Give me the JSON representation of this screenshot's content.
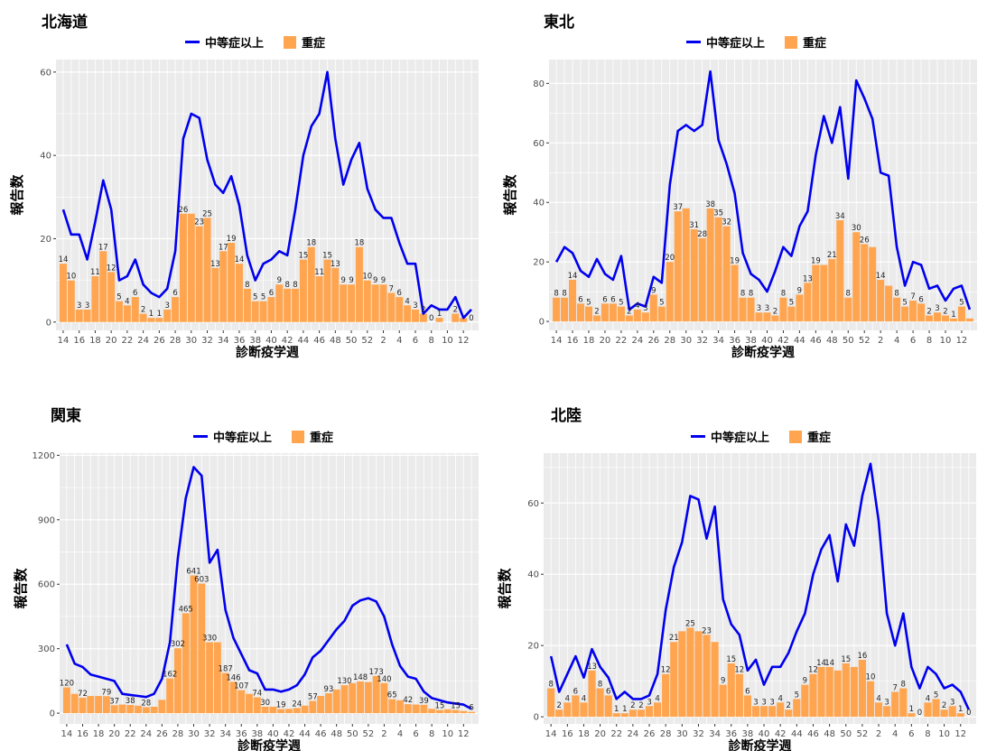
{
  "legend": {
    "line_label": "中等症以上",
    "bar_label": "重症"
  },
  "colors": {
    "line": "#0000ee",
    "bar": "#ffa54f",
    "panel_bg": "#ebebeb",
    "grid": "#ffffff"
  },
  "week_ticks": [
    "14",
    "16",
    "18",
    "20",
    "22",
    "24",
    "26",
    "28",
    "30",
    "32",
    "34",
    "36",
    "38",
    "40",
    "42",
    "44",
    "46",
    "48",
    "50",
    "52",
    "2",
    "4",
    "6",
    "8",
    "10",
    "12"
  ],
  "chart_data": [
    {
      "type": "bar+line",
      "title": "北海道",
      "xlabel": "診断疫学週",
      "ylabel": "報告数",
      "yticks": [
        0,
        20,
        40,
        60
      ],
      "ylim": [
        -2,
        63
      ],
      "series": [
        {
          "name": "中等症以上",
          "values": [
            27,
            21,
            21,
            15,
            24,
            34,
            27,
            10,
            11,
            15,
            9,
            7,
            6,
            8,
            17,
            44,
            50,
            49,
            39,
            33,
            31,
            35,
            28,
            16,
            10,
            14,
            15,
            17,
            16,
            27,
            40,
            47,
            50,
            60,
            44,
            33,
            39,
            43,
            32,
            27,
            25,
            25,
            19,
            14,
            14,
            2,
            4,
            3,
            3,
            6,
            1,
            3
          ]
        },
        {
          "name": "重症",
          "values": [
            14,
            10,
            3,
            3,
            11,
            17,
            12,
            5,
            4,
            6,
            2,
            1,
            1,
            3,
            6,
            26,
            26,
            23,
            25,
            13,
            17,
            19,
            14,
            8,
            5,
            5,
            6,
            9,
            8,
            8,
            15,
            18,
            11,
            15,
            13,
            9,
            9,
            18,
            10,
            9,
            9,
            7,
            6,
            4,
            3,
            2,
            0,
            1,
            0,
            2,
            1,
            0
          ]
        }
      ],
      "bar_labels": [
        "14",
        "10",
        "3",
        "3",
        "11",
        "17",
        "12",
        "5",
        "4",
        "6",
        "2",
        "1",
        "1",
        "3",
        "6",
        "26",
        "",
        "23",
        "25",
        "13",
        "17",
        "19",
        "14",
        "8",
        "5",
        "5",
        "6",
        "9",
        "8",
        "8",
        "15",
        "18",
        "11",
        "15",
        "13",
        "9",
        "9",
        "18",
        "10",
        "9",
        "9",
        "7",
        "6",
        "4",
        "3",
        "2",
        "0",
        "1",
        "",
        "2",
        "",
        "0"
      ]
    },
    {
      "type": "bar+line",
      "title": "東北",
      "xlabel": "診断疫学週",
      "ylabel": "報告数",
      "yticks": [
        0,
        20,
        40,
        60,
        80
      ],
      "ylim": [
        -3,
        88
      ],
      "series": [
        {
          "name": "中等症以上",
          "values": [
            20,
            25,
            23,
            17,
            15,
            21,
            16,
            14,
            22,
            4,
            6,
            5,
            15,
            13,
            46,
            64,
            66,
            64,
            66,
            84,
            61,
            53,
            43,
            23,
            16,
            14,
            10,
            17,
            25,
            22,
            32,
            37,
            56,
            69,
            60,
            72,
            48,
            81,
            75,
            68,
            50,
            49,
            25,
            12,
            20,
            19,
            11,
            12,
            7,
            11,
            12,
            4
          ]
        },
        {
          "name": "重症",
          "values": [
            8,
            8,
            14,
            6,
            5,
            2,
            6,
            6,
            5,
            2,
            4,
            3,
            9,
            5,
            20,
            37,
            38,
            31,
            28,
            38,
            35,
            32,
            19,
            8,
            8,
            3,
            3,
            2,
            8,
            5,
            9,
            13,
            19,
            19,
            21,
            34,
            8,
            30,
            26,
            25,
            14,
            12,
            8,
            5,
            7,
            6,
            2,
            3,
            2,
            1,
            5,
            1
          ]
        }
      ],
      "bar_labels": [
        "8",
        "8",
        "14",
        "6",
        "5",
        "2",
        "6",
        "6",
        "5",
        "2",
        "4",
        "3",
        "9",
        "5",
        "20",
        "37",
        "",
        "31",
        "28",
        "38",
        "35",
        "32",
        "19",
        "8",
        "8",
        "3",
        "3",
        "2",
        "8",
        "5",
        "9",
        "13",
        "19",
        "",
        "21",
        "34",
        "8",
        "30",
        "26",
        "",
        "14",
        "",
        "8",
        "5",
        "7",
        "6",
        "2",
        "3",
        "2",
        "1",
        "5",
        ""
      ]
    },
    {
      "type": "bar+line",
      "title": "関東",
      "xlabel": "診断疫学週",
      "ylabel": "報告数",
      "yticks": [
        0,
        300,
        600,
        900,
        1200
      ],
      "ylim": [
        -50,
        1210
      ],
      "series": [
        {
          "name": "中等症以上",
          "values": [
            320,
            230,
            215,
            180,
            170,
            160,
            150,
            90,
            85,
            80,
            75,
            90,
            160,
            330,
            720,
            1000,
            1145,
            1105,
            700,
            760,
            480,
            350,
            275,
            200,
            185,
            110,
            110,
            100,
            110,
            130,
            180,
            260,
            290,
            340,
            390,
            430,
            500,
            525,
            535,
            520,
            450,
            320,
            220,
            170,
            160,
            100,
            70,
            60,
            50,
            45,
            40,
            20
          ]
        },
        {
          "name": "重症",
          "values": [
            120,
            90,
            72,
            80,
            80,
            79,
            37,
            40,
            38,
            35,
            28,
            30,
            62,
            162,
            302,
            465,
            641,
            603,
            330,
            330,
            187,
            146,
            107,
            90,
            74,
            30,
            30,
            19,
            20,
            24,
            35,
            57,
            80,
            93,
            110,
            130,
            140,
            148,
            145,
            173,
            140,
            65,
            60,
            42,
            40,
            39,
            20,
            15,
            18,
            15,
            10,
            6
          ]
        }
      ],
      "bar_labels": [
        "120",
        "",
        "72",
        "",
        "",
        "79",
        "37",
        "",
        "38",
        "",
        "28",
        "",
        "",
        "162",
        "302",
        "465",
        "641",
        "603",
        "330",
        "",
        "187",
        "146",
        "107",
        "",
        "74",
        "30",
        "",
        "19",
        "",
        "24",
        "",
        "57",
        "",
        "93",
        "",
        "130",
        "",
        "148",
        "",
        "173",
        "140",
        "65",
        "",
        "42",
        "",
        "39",
        "",
        "15",
        "",
        "15",
        "",
        "6"
      ]
    },
    {
      "type": "bar+line",
      "title": "北陸",
      "xlabel": "診断疫学週",
      "ylabel": "報告数",
      "yticks": [
        0,
        20,
        40,
        60
      ],
      "ylim": [
        -2,
        74
      ],
      "series": [
        {
          "name": "中等症以上",
          "values": [
            17,
            7,
            12,
            17,
            11,
            19,
            14,
            11,
            5,
            7,
            5,
            5,
            6,
            12,
            30,
            42,
            49,
            62,
            61,
            50,
            59,
            33,
            26,
            23,
            13,
            16,
            9,
            14,
            14,
            18,
            24,
            29,
            40,
            47,
            51,
            38,
            54,
            48,
            62,
            71,
            55,
            29,
            20,
            29,
            14,
            8,
            14,
            12,
            8,
            9,
            7,
            2
          ]
        },
        {
          "name": "重症",
          "values": [
            8,
            2,
            4,
            6,
            4,
            13,
            8,
            6,
            1,
            1,
            2,
            2,
            3,
            4,
            12,
            21,
            24,
            25,
            24,
            23,
            21,
            9,
            15,
            12,
            6,
            3,
            3,
            3,
            4,
            2,
            5,
            9,
            12,
            14,
            14,
            13,
            15,
            14,
            16,
            10,
            4,
            3,
            7,
            8,
            1,
            0,
            4,
            5,
            2,
            3,
            1,
            0
          ]
        }
      ],
      "bar_labels": [
        "8",
        "2",
        "4",
        "6",
        "4",
        "13",
        "8",
        "6",
        "1",
        "1",
        "2",
        "2",
        "3",
        "4",
        "12",
        "21",
        "",
        "25",
        "",
        "23",
        "",
        "9",
        "15",
        "12",
        "6",
        "3",
        "3",
        "3",
        "4",
        "2",
        "5",
        "9",
        "12",
        "14",
        "14",
        "",
        "15",
        "",
        "16",
        "10",
        "4",
        "3",
        "7",
        "8",
        "1",
        "0",
        "4",
        "5",
        "2",
        "3",
        "1",
        "0"
      ]
    }
  ]
}
